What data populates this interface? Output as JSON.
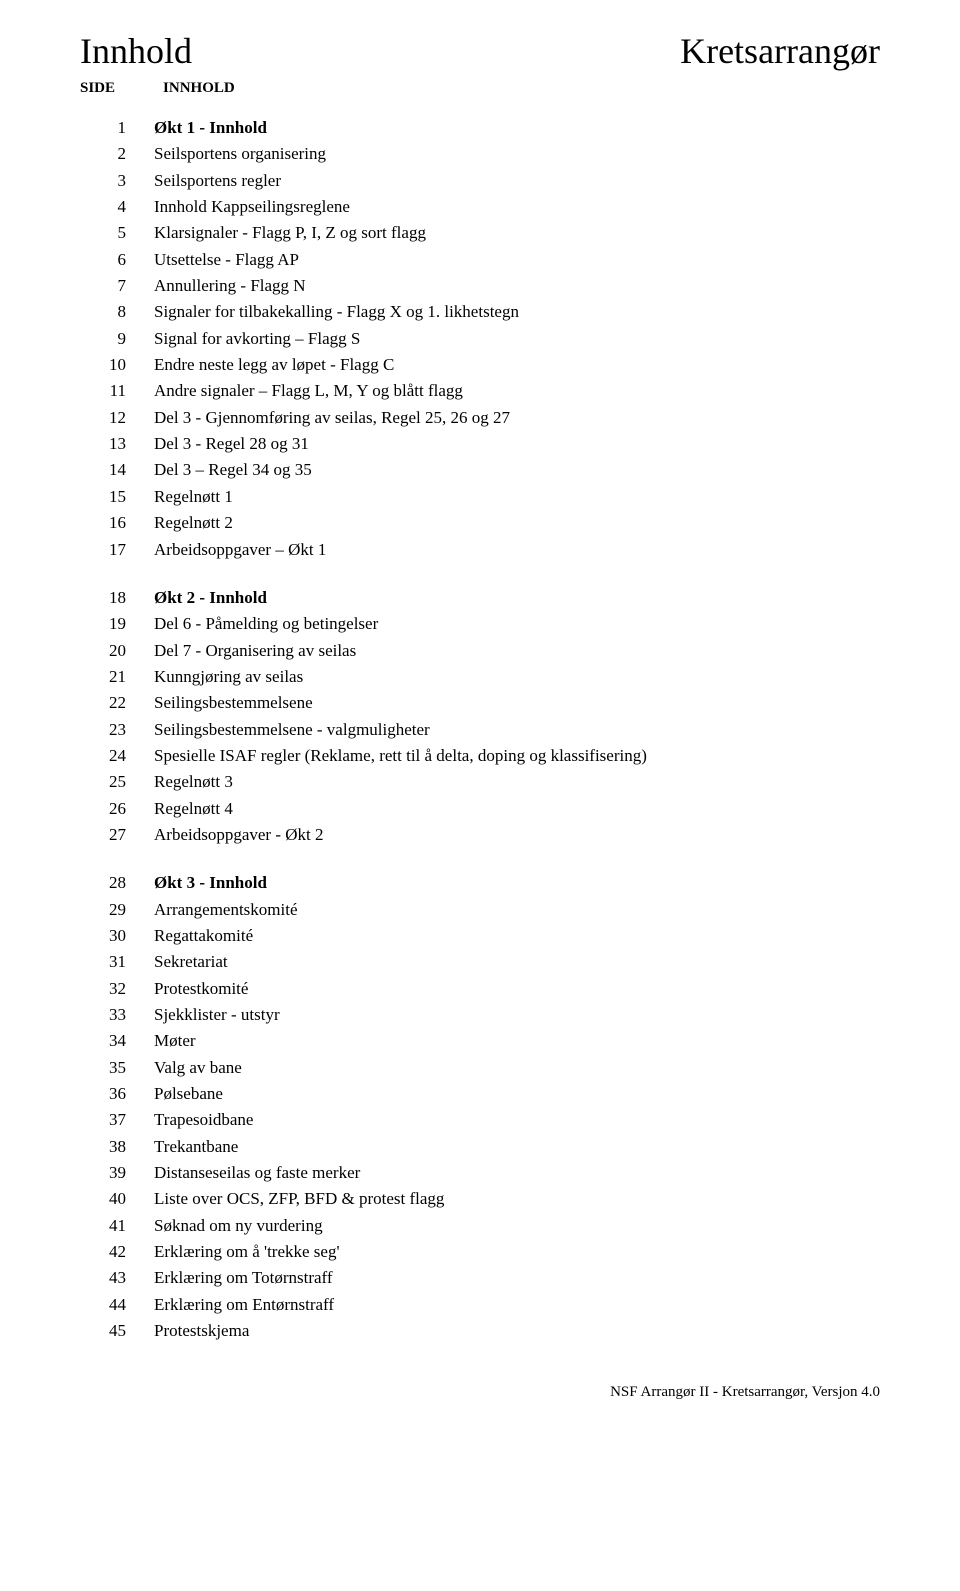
{
  "header": {
    "title_left": "Innhold",
    "title_right": "Kretsarrangør",
    "col_left": "SIDE",
    "col_right": "INNHOLD"
  },
  "sections": [
    {
      "items": [
        {
          "n": "1",
          "t": "Økt 1 - Innhold",
          "bold": true
        },
        {
          "n": "2",
          "t": "Seilsportens organisering"
        },
        {
          "n": "3",
          "t": "Seilsportens regler"
        },
        {
          "n": "4",
          "t": "Innhold Kappseilingsreglene"
        },
        {
          "n": "5",
          "t": "Klarsignaler - Flagg P, I, Z og sort flagg"
        },
        {
          "n": "6",
          "t": "Utsettelse - Flagg AP"
        },
        {
          "n": "7",
          "t": "Annullering - Flagg N"
        },
        {
          "n": "8",
          "t": "Signaler for tilbakekalling - Flagg X og 1. likhetstegn"
        },
        {
          "n": "9",
          "t": "Signal for avkorting – Flagg S"
        },
        {
          "n": "10",
          "t": "Endre neste legg av løpet - Flagg C"
        },
        {
          "n": "11",
          "t": "Andre signaler – Flagg L, M, Y og blått flagg"
        },
        {
          "n": "12",
          "t": "Del 3 - Gjennomføring av seilas, Regel 25, 26 og 27"
        },
        {
          "n": "13",
          "t": "Del 3 - Regel 28 og 31"
        },
        {
          "n": "14",
          "t": "Del 3 – Regel 34 og 35"
        },
        {
          "n": "15",
          "t": "Regelnøtt 1"
        },
        {
          "n": "16",
          "t": "Regelnøtt 2"
        },
        {
          "n": "17",
          "t": "Arbeidsoppgaver – Økt 1"
        }
      ]
    },
    {
      "items": [
        {
          "n": "18",
          "t": "Økt 2 - Innhold",
          "bold": true
        },
        {
          "n": "19",
          "t": "Del 6 - Påmelding og betingelser"
        },
        {
          "n": "20",
          "t": "Del 7 - Organisering av seilas"
        },
        {
          "n": "21",
          "t": "Kunngjøring av seilas"
        },
        {
          "n": "22",
          "t": "Seilingsbestemmelsene"
        },
        {
          "n": "23",
          "t": "Seilingsbestemmelsene - valgmuligheter"
        },
        {
          "n": "24",
          "t": "Spesielle ISAF regler (Reklame, rett til å delta, doping og klassifisering)"
        },
        {
          "n": "25",
          "t": "Regelnøtt 3"
        },
        {
          "n": "26",
          "t": "Regelnøtt 4"
        },
        {
          "n": "27",
          "t": "Arbeidsoppgaver - Økt 2"
        }
      ]
    },
    {
      "items": [
        {
          "n": "28",
          "t": "Økt 3 - Innhold",
          "bold": true
        },
        {
          "n": "29",
          "t": "Arrangementskomité"
        },
        {
          "n": "30",
          "t": "Regattakomité"
        },
        {
          "n": "31",
          "t": "Sekretariat"
        },
        {
          "n": "32",
          "t": "Protestkomité"
        },
        {
          "n": "33",
          "t": "Sjekklister - utstyr"
        },
        {
          "n": "34",
          "t": "Møter"
        },
        {
          "n": "35",
          "t": "Valg av bane"
        },
        {
          "n": "36",
          "t": "Pølsebane"
        },
        {
          "n": "37",
          "t": "Trapesoidbane"
        },
        {
          "n": "38",
          "t": "Trekantbane"
        },
        {
          "n": "39",
          "t": "Distanseseilas og faste merker"
        },
        {
          "n": "40",
          "t": "Liste over OCS, ZFP, BFD & protest flagg"
        },
        {
          "n": "41",
          "t": "Søknad om ny vurdering"
        },
        {
          "n": "42",
          "t": "Erklæring om å 'trekke seg'"
        },
        {
          "n": "43",
          "t": "Erklæring om Totørnstraff"
        },
        {
          "n": "44",
          "t": "Erklæring om Entørnstraff"
        },
        {
          "n": "45",
          "t": "Protestskjema"
        }
      ]
    }
  ],
  "footer": "NSF  Arrangør II - Kretsarrangør, Versjon 4.0"
}
